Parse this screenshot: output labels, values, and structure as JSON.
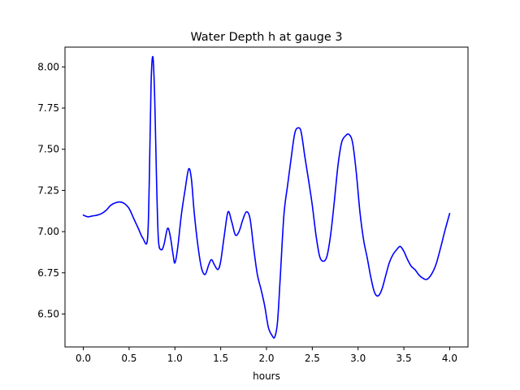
{
  "chart_data": {
    "type": "line",
    "title": "Water Depth h at gauge 3",
    "xlabel": "hours",
    "ylabel": "",
    "xlim": [
      -0.2,
      4.2
    ],
    "ylim": [
      6.3,
      8.12
    ],
    "xticks": [
      0.0,
      0.5,
      1.0,
      1.5,
      2.0,
      2.5,
      3.0,
      3.5,
      4.0
    ],
    "xtick_labels": [
      "0.0",
      "0.5",
      "1.0",
      "1.5",
      "2.0",
      "2.5",
      "3.0",
      "3.5",
      "4.0"
    ],
    "yticks": [
      6.5,
      6.75,
      7.0,
      7.25,
      7.5,
      7.75,
      8.0
    ],
    "ytick_labels": [
      "6.50",
      "6.75",
      "7.00",
      "7.25",
      "7.50",
      "7.75",
      "8.00"
    ],
    "grid": false,
    "series": [
      {
        "name": "",
        "color": "#0000ff",
        "x": [
          0.0,
          0.05,
          0.1,
          0.15,
          0.2,
          0.25,
          0.3,
          0.35,
          0.4,
          0.45,
          0.5,
          0.55,
          0.6,
          0.65,
          0.7,
          0.72,
          0.74,
          0.76,
          0.78,
          0.8,
          0.82,
          0.85,
          0.88,
          0.92,
          0.95,
          0.98,
          1.0,
          1.03,
          1.07,
          1.11,
          1.15,
          1.18,
          1.21,
          1.25,
          1.29,
          1.33,
          1.37,
          1.4,
          1.43,
          1.47,
          1.5,
          1.54,
          1.58,
          1.62,
          1.66,
          1.7,
          1.74,
          1.78,
          1.82,
          1.86,
          1.9,
          1.94,
          1.98,
          2.02,
          2.06,
          2.09,
          2.12,
          2.15,
          2.19,
          2.23,
          2.27,
          2.31,
          2.35,
          2.38,
          2.42,
          2.46,
          2.5,
          2.54,
          2.58,
          2.62,
          2.66,
          2.7,
          2.74,
          2.78,
          2.82,
          2.86,
          2.9,
          2.94,
          2.98,
          3.02,
          3.06,
          3.1,
          3.14,
          3.18,
          3.22,
          3.26,
          3.3,
          3.34,
          3.38,
          3.42,
          3.46,
          3.5,
          3.54,
          3.58,
          3.62,
          3.66,
          3.7,
          3.75,
          3.8,
          3.85,
          3.9,
          3.95,
          4.0
        ],
        "y": [
          7.1,
          7.09,
          7.095,
          7.1,
          7.11,
          7.13,
          7.16,
          7.175,
          7.18,
          7.17,
          7.14,
          7.08,
          7.02,
          6.96,
          6.95,
          7.3,
          7.9,
          8.06,
          7.8,
          7.3,
          6.95,
          6.89,
          6.92,
          7.02,
          6.97,
          6.86,
          6.81,
          6.9,
          7.1,
          7.25,
          7.38,
          7.32,
          7.12,
          6.92,
          6.78,
          6.74,
          6.8,
          6.83,
          6.8,
          6.77,
          6.82,
          6.98,
          7.12,
          7.06,
          6.98,
          7.0,
          7.07,
          7.12,
          7.08,
          6.9,
          6.74,
          6.65,
          6.55,
          6.42,
          6.37,
          6.36,
          6.45,
          6.72,
          7.1,
          7.28,
          7.45,
          7.6,
          7.63,
          7.6,
          7.45,
          7.31,
          7.16,
          6.98,
          6.85,
          6.82,
          6.85,
          6.98,
          7.18,
          7.4,
          7.54,
          7.58,
          7.59,
          7.54,
          7.36,
          7.12,
          6.95,
          6.84,
          6.72,
          6.63,
          6.61,
          6.65,
          6.73,
          6.81,
          6.86,
          6.89,
          6.91,
          6.88,
          6.83,
          6.79,
          6.77,
          6.74,
          6.72,
          6.71,
          6.74,
          6.8,
          6.9,
          7.01,
          7.11
        ]
      }
    ]
  }
}
